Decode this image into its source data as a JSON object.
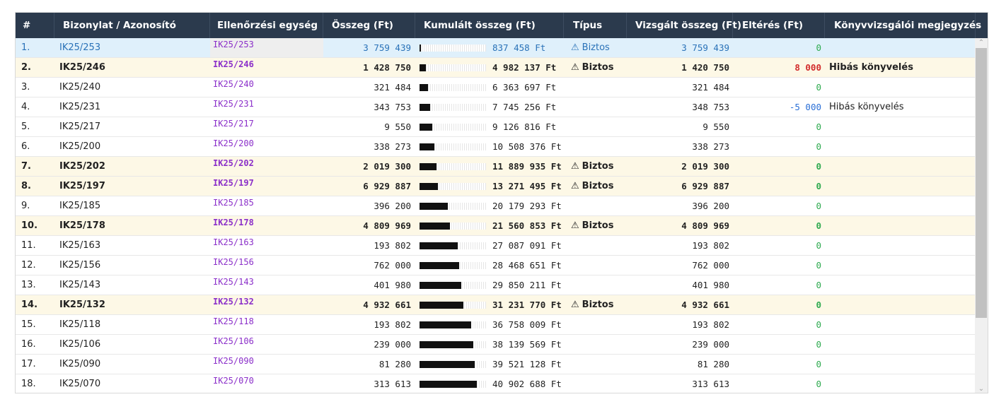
{
  "columns": [
    "#",
    "Bizonylat / Azonosító",
    "Ellenőrzési egység",
    "Összeg (Ft)",
    "Kumulált összeg (Ft)",
    "Típus",
    "Vizsgált összeg (Ft)",
    "Eltérés (Ft)",
    "Könyvvizsgálói megjegyzés"
  ],
  "rows": [
    {
      "idx": "1.",
      "doc": "IK25/253",
      "unit": "IK25/253",
      "amount": "3 759 439",
      "cum": "837 458 Ft",
      "fill": 0.02,
      "type": "Biztos",
      "verified": "3 759 439",
      "diff": "0",
      "note": "",
      "style": "sel"
    },
    {
      "idx": "2.",
      "doc": "IK25/246",
      "unit": "IK25/246",
      "amount": "1 428 750",
      "cum": "4 982 137 Ft",
      "fill": 0.1,
      "type": "Biztos",
      "verified": "1 420 750",
      "diff": "8 000",
      "note": "Hibás könyvelés",
      "style": "hl"
    },
    {
      "idx": "3.",
      "doc": "IK25/240",
      "unit": "IK25/240",
      "amount": "321 484",
      "cum": "6 363 697 Ft",
      "fill": 0.13,
      "type": "",
      "verified": "321 484",
      "diff": "0",
      "note": "",
      "style": ""
    },
    {
      "idx": "4.",
      "doc": "IK25/231",
      "unit": "IK25/231",
      "amount": "343 753",
      "cum": "7 745 256 Ft",
      "fill": 0.16,
      "type": "",
      "verified": "348 753",
      "diff": "-5 000",
      "note": "Hibás könyvelés",
      "style": ""
    },
    {
      "idx": "5.",
      "doc": "IK25/217",
      "unit": "IK25/217",
      "amount": "9 550",
      "cum": "9 126 816 Ft",
      "fill": 0.19,
      "type": "",
      "verified": "9 550",
      "diff": "0",
      "note": "",
      "style": ""
    },
    {
      "idx": "6.",
      "doc": "IK25/200",
      "unit": "IK25/200",
      "amount": "338 273",
      "cum": "10 508 376 Ft",
      "fill": 0.22,
      "type": "",
      "verified": "338 273",
      "diff": "0",
      "note": "",
      "style": ""
    },
    {
      "idx": "7.",
      "doc": "IK25/202",
      "unit": "IK25/202",
      "amount": "2 019 300",
      "cum": "11 889 935 Ft",
      "fill": 0.25,
      "type": "Biztos",
      "verified": "2 019 300",
      "diff": "0",
      "note": "",
      "style": "hl"
    },
    {
      "idx": "8.",
      "doc": "IK25/197",
      "unit": "IK25/197",
      "amount": "6 929 887",
      "cum": "13 271 495 Ft",
      "fill": 0.28,
      "type": "Biztos",
      "verified": "6 929 887",
      "diff": "0",
      "note": "",
      "style": "hl"
    },
    {
      "idx": "9.",
      "doc": "IK25/185",
      "unit": "IK25/185",
      "amount": "396 200",
      "cum": "20 179 293 Ft",
      "fill": 0.43,
      "type": "",
      "verified": "396 200",
      "diff": "0",
      "note": "",
      "style": ""
    },
    {
      "idx": "10.",
      "doc": "IK25/178",
      "unit": "IK25/178",
      "amount": "4 809 969",
      "cum": "21 560 853 Ft",
      "fill": 0.46,
      "type": "Biztos",
      "verified": "4 809 969",
      "diff": "0",
      "note": "",
      "style": "hl"
    },
    {
      "idx": "11.",
      "doc": "IK25/163",
      "unit": "IK25/163",
      "amount": "193 802",
      "cum": "27 087 091 Ft",
      "fill": 0.57,
      "type": "",
      "verified": "193 802",
      "diff": "0",
      "note": "",
      "style": ""
    },
    {
      "idx": "12.",
      "doc": "IK25/156",
      "unit": "IK25/156",
      "amount": "762 000",
      "cum": "28 468 651 Ft",
      "fill": 0.6,
      "type": "",
      "verified": "762 000",
      "diff": "0",
      "note": "",
      "style": ""
    },
    {
      "idx": "13.",
      "doc": "IK25/143",
      "unit": "IK25/143",
      "amount": "401 980",
      "cum": "29 850 211 Ft",
      "fill": 0.63,
      "type": "",
      "verified": "401 980",
      "diff": "0",
      "note": "",
      "style": ""
    },
    {
      "idx": "14.",
      "doc": "IK25/132",
      "unit": "IK25/132",
      "amount": "4 932 661",
      "cum": "31 231 770 Ft",
      "fill": 0.66,
      "type": "Biztos",
      "verified": "4 932 661",
      "diff": "0",
      "note": "",
      "style": "hl"
    },
    {
      "idx": "15.",
      "doc": "IK25/118",
      "unit": "IK25/118",
      "amount": "193 802",
      "cum": "36 758 009 Ft",
      "fill": 0.78,
      "type": "",
      "verified": "193 802",
      "diff": "0",
      "note": "",
      "style": ""
    },
    {
      "idx": "16.",
      "doc": "IK25/106",
      "unit": "IK25/106",
      "amount": "239 000",
      "cum": "38 139 569 Ft",
      "fill": 0.81,
      "type": "",
      "verified": "239 000",
      "diff": "0",
      "note": "",
      "style": ""
    },
    {
      "idx": "17.",
      "doc": "IK25/090",
      "unit": "IK25/090",
      "amount": "81 280",
      "cum": "39 521 128 Ft",
      "fill": 0.83,
      "type": "",
      "verified": "81 280",
      "diff": "0",
      "note": "",
      "style": ""
    },
    {
      "idx": "18.",
      "doc": "IK25/070",
      "unit": "IK25/070",
      "amount": "313 613",
      "cum": "40 902 688 Ft",
      "fill": 0.86,
      "type": "",
      "verified": "313 613",
      "diff": "0",
      "note": "",
      "style": ""
    }
  ],
  "colors": {
    "header": "#2b3a4d",
    "highlight": "#fdf8e6",
    "selected": "#dff0fb",
    "unit": "#8b2fc9",
    "diff_zero": "#2eaa4f",
    "diff_pos": "#d22b2b",
    "diff_neg": "#2a6fd6"
  },
  "icons": {
    "warning": "warning-icon"
  }
}
